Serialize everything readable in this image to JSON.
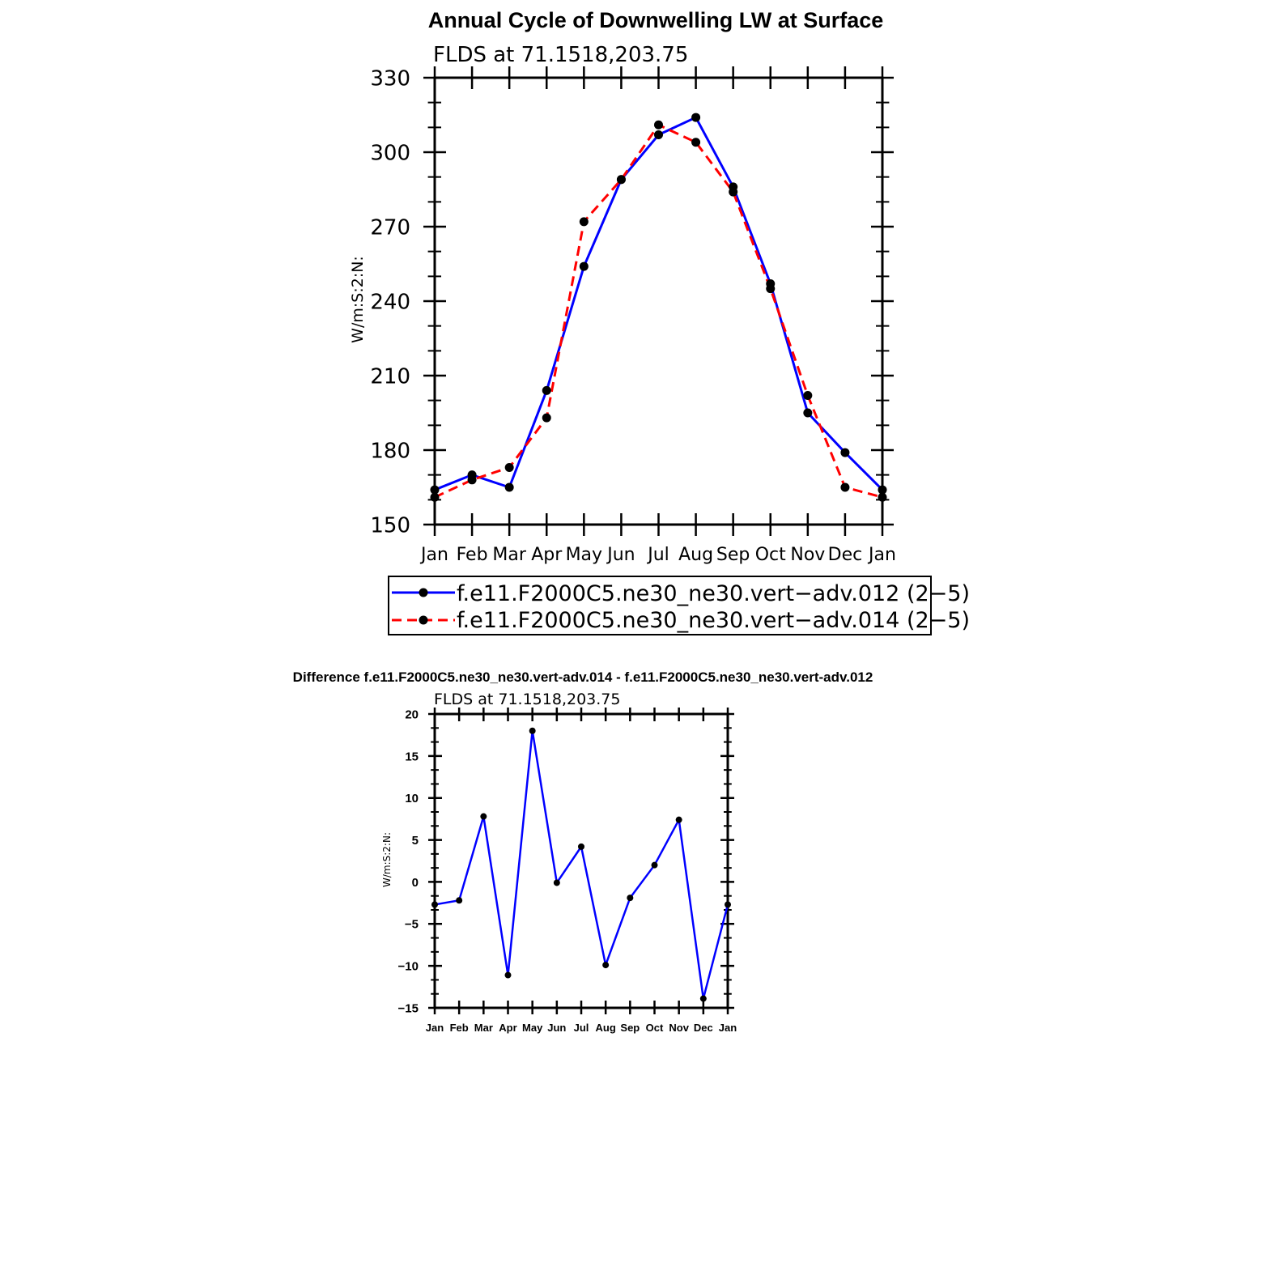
{
  "chart_data": [
    {
      "type": "line",
      "title": "Annual Cycle of Downwelling LW at Surface",
      "subtitle": "FLDS at 71.1518,203.75",
      "ylabel": "W/m:S:2:N:",
      "xlabel": "",
      "ylim": [
        150,
        330
      ],
      "yticks": [
        150,
        180,
        210,
        240,
        270,
        300,
        330
      ],
      "categories": [
        "Jan",
        "Feb",
        "Mar",
        "Apr",
        "May",
        "Jun",
        "Jul",
        "Aug",
        "Sep",
        "Oct",
        "Nov",
        "Dec",
        "Jan"
      ],
      "grid": false,
      "legend": "bottom",
      "series": [
        {
          "name": "f.e11.F2000C5.ne30_ne30.vert−adv.012 (2−5)",
          "color": "#0000ff",
          "dash": "solid",
          "values": [
            164,
            170,
            165,
            204,
            254,
            289,
            307,
            314,
            286,
            247,
            195,
            179,
            164
          ]
        },
        {
          "name": "f.e11.F2000C5.ne30_ne30.vert−adv.014 (2−5)",
          "color": "#ff0000",
          "dash": "dashed",
          "values": [
            161,
            168,
            173,
            193,
            272,
            289,
            311,
            304,
            284,
            245,
            202,
            165,
            161
          ]
        }
      ]
    },
    {
      "type": "line",
      "title": "Difference f.e11.F2000C5.ne30_ne30.vert-adv.014 - f.e11.F2000C5.ne30_ne30.vert-adv.012",
      "subtitle": "FLDS at 71.1518,203.75",
      "ylabel": "W/m:S:2:N:",
      "xlabel": "",
      "ylim": [
        -15,
        20
      ],
      "yticks": [
        -15,
        -10,
        -5,
        0,
        5,
        10,
        15,
        20
      ],
      "ytick_labels": [
        "−15",
        "−10",
        "−5",
        "0",
        "5",
        "10",
        "15",
        "20"
      ],
      "categories": [
        "Jan",
        "Feb",
        "Mar",
        "Apr",
        "May",
        "Jun",
        "Jul",
        "Aug",
        "Sep",
        "Oct",
        "Nov",
        "Dec",
        "Jan"
      ],
      "grid": false,
      "series": [
        {
          "color": "#0000ff",
          "dash": "solid",
          "values": [
            -2.7,
            -2.2,
            7.8,
            -11.1,
            18.0,
            -0.1,
            4.2,
            -9.9,
            -1.9,
            2.0,
            7.4,
            -13.9,
            -2.7
          ]
        }
      ]
    }
  ]
}
